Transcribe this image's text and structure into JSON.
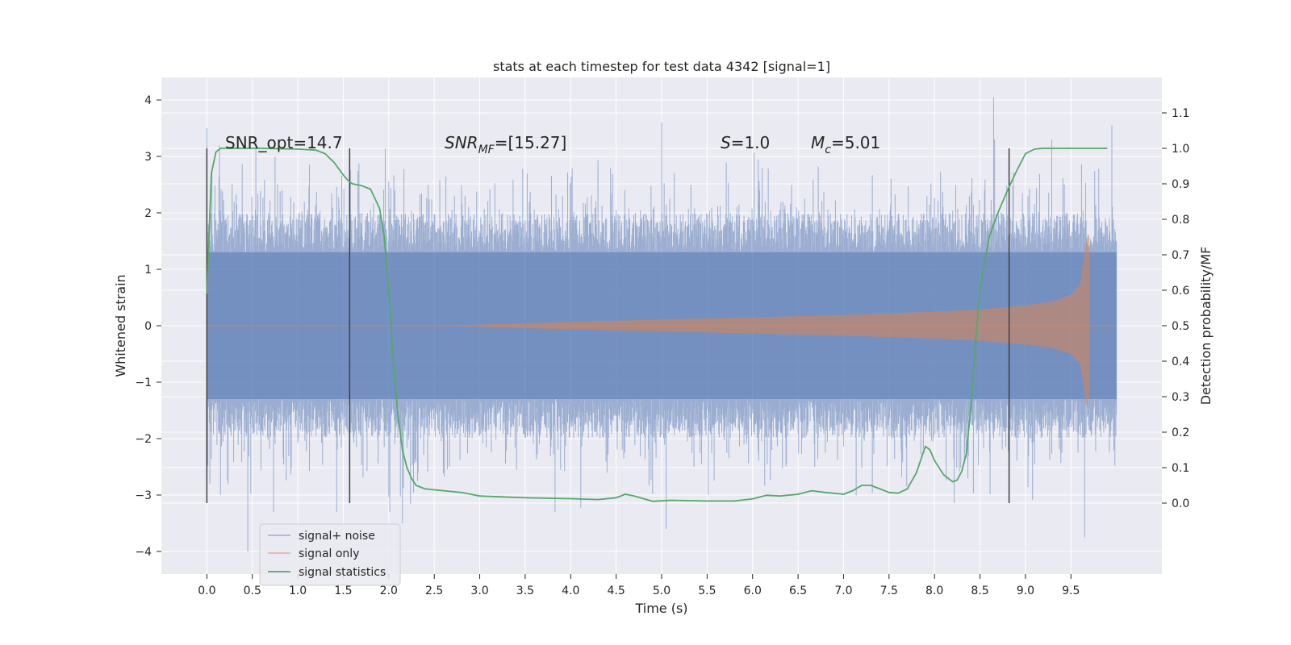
{
  "chart_data": {
    "type": "line",
    "title": "stats at each timestep for test data 4342 [signal=1]",
    "xlabel": "Time (s)",
    "ylabel": "Whitened strain",
    "ylabel_right": "Detection probability/MF",
    "xlim": [
      -0.5,
      10.5
    ],
    "ylim": [
      -4.4,
      4.4
    ],
    "ylim_right": [
      -0.2,
      1.2
    ],
    "xticks": [
      0.0,
      0.5,
      1.0,
      1.5,
      2.0,
      2.5,
      3.0,
      3.5,
      4.0,
      4.5,
      5.0,
      5.5,
      6.0,
      6.5,
      7.0,
      7.5,
      8.0,
      8.5,
      9.0,
      9.5
    ],
    "xtick_labels": [
      "0.0",
      "0.5",
      "1.0",
      "1.5",
      "2.0",
      "2.5",
      "3.0",
      "3.5",
      "4.0",
      "4.5",
      "5.0",
      "5.5",
      "6.0",
      "6.5",
      "7.0",
      "7.5",
      "8.0",
      "8.5",
      "9.0",
      "9.5"
    ],
    "yticks": [
      -4,
      -3,
      -2,
      -1,
      0,
      1,
      2,
      3,
      4
    ],
    "ytick_labels": [
      "−4",
      "−3",
      "−2",
      "−1",
      "0",
      "1",
      "2",
      "3",
      "4"
    ],
    "yticks_right": [
      0.0,
      0.1,
      0.2,
      0.3,
      0.4,
      0.5,
      0.6,
      0.7,
      0.8,
      0.9,
      1.0,
      1.1
    ],
    "ytick_labels_right": [
      "0.0",
      "0.1",
      "0.2",
      "0.3",
      "0.4",
      "0.5",
      "0.6",
      "0.7",
      "0.8",
      "0.9",
      "1.0",
      "1.1"
    ],
    "grid": true,
    "legend_position": "lower-left",
    "series": [
      {
        "name": "signal+ noise",
        "color": "#4c72b0",
        "axis": "left",
        "kind": "noise-band",
        "x_range": [
          0.0,
          10.0
        ],
        "core_range": [
          -1.3,
          1.3
        ],
        "dense_range": [
          -2.0,
          2.0
        ],
        "extremes": [
          {
            "x": 0.0,
            "y": 3.5
          },
          {
            "x": 0.45,
            "y": -4.0
          },
          {
            "x": 0.75,
            "y": 3.0
          },
          {
            "x": 2.15,
            "y": -3.5
          },
          {
            "x": 5.05,
            "y": -3.6
          },
          {
            "x": 5.0,
            "y": 3.6
          },
          {
            "x": 8.65,
            "y": 4.05
          },
          {
            "x": 9.65,
            "y": -3.75
          },
          {
            "x": 9.95,
            "y": 3.55
          }
        ]
      },
      {
        "name": "signal only",
        "color": "#dd8452",
        "axis": "left",
        "kind": "chirp-envelope",
        "x": [
          2.5,
          3.0,
          4.0,
          5.0,
          6.0,
          7.0,
          8.0,
          8.5,
          9.0,
          9.3,
          9.5,
          9.6,
          9.65,
          9.68
        ],
        "amplitude": [
          0.0,
          0.02,
          0.07,
          0.11,
          0.15,
          0.19,
          0.25,
          0.29,
          0.36,
          0.43,
          0.55,
          0.75,
          1.3,
          1.6
        ],
        "cutoff": 9.69
      },
      {
        "name": "signal statistics",
        "color": "#55a868",
        "axis": "right",
        "kind": "line",
        "x": [
          0.0,
          0.05,
          0.1,
          0.15,
          0.25,
          0.4,
          0.6,
          0.8,
          1.0,
          1.2,
          1.3,
          1.4,
          1.5,
          1.55,
          1.6,
          1.7,
          1.8,
          1.9,
          1.95,
          2.0,
          2.05,
          2.1,
          2.15,
          2.2,
          2.25,
          2.3,
          2.4,
          2.6,
          2.8,
          3.0,
          3.5,
          4.0,
          4.3,
          4.5,
          4.6,
          4.7,
          4.9,
          5.1,
          5.5,
          5.8,
          6.0,
          6.15,
          6.3,
          6.5,
          6.65,
          6.8,
          7.0,
          7.1,
          7.2,
          7.3,
          7.4,
          7.5,
          7.6,
          7.7,
          7.8,
          7.9,
          7.95,
          8.0,
          8.1,
          8.2,
          8.25,
          8.3,
          8.35,
          8.4,
          8.45,
          8.5,
          8.6,
          8.7,
          8.8,
          8.9,
          9.0,
          9.1,
          9.2,
          9.3,
          9.5,
          9.7,
          9.9
        ],
        "y": [
          0.59,
          0.93,
          0.99,
          1.0,
          1.0,
          1.0,
          1.0,
          0.999,
          0.998,
          0.995,
          0.985,
          0.96,
          0.925,
          0.91,
          0.9,
          0.895,
          0.885,
          0.83,
          0.75,
          0.6,
          0.4,
          0.25,
          0.15,
          0.1,
          0.07,
          0.05,
          0.04,
          0.035,
          0.03,
          0.02,
          0.015,
          0.0125,
          0.01,
          0.015,
          0.025,
          0.02,
          0.005,
          0.008,
          0.006,
          0.006,
          0.012,
          0.022,
          0.02,
          0.025,
          0.035,
          0.03,
          0.025,
          0.035,
          0.05,
          0.05,
          0.04,
          0.03,
          0.028,
          0.04,
          0.085,
          0.16,
          0.15,
          0.12,
          0.08,
          0.06,
          0.065,
          0.09,
          0.14,
          0.27,
          0.45,
          0.6,
          0.75,
          0.82,
          0.88,
          0.935,
          0.985,
          0.998,
          1.0,
          1.0,
          1.0,
          1.0,
          1.0
        ]
      }
    ],
    "vlines": [
      0.0,
      1.57,
      8.82
    ],
    "vline_range_right": [
      0.0,
      1.0
    ],
    "annotations": [
      {
        "text": "SNR_opt=14.7",
        "x": 0.2,
        "y": 1.0,
        "axis": "right"
      },
      {
        "text": "SNRMF=[15.27]",
        "x": 2.6,
        "y": 1.0,
        "axis": "right"
      },
      {
        "text": "S=1.0",
        "x": 5.6,
        "y": 1.0,
        "axis": "right"
      },
      {
        "text": "Mc=5.01",
        "x": 6.6,
        "y": 1.0,
        "axis": "right"
      }
    ]
  },
  "annotation_parts": {
    "snr_mf_main": "SNR",
    "snr_mf_sub": "MF",
    "snr_mf_tail": "=[15.27]",
    "s_main": "S",
    "s_tail": "=1.0",
    "mc_main": "M",
    "mc_sub": "c",
    "mc_tail": "=5.01"
  },
  "legend": {
    "items": [
      "signal+ noise",
      "signal only",
      "signal statistics"
    ]
  }
}
